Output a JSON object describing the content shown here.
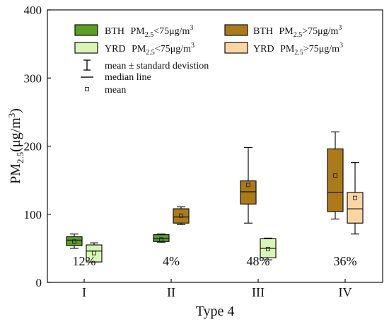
{
  "chart_data": {
    "type": "box",
    "xlabel": "Type 4",
    "ylabel": {
      "prefix": "PM",
      "sub": "2.5",
      "suffix": "(μg/m",
      "sup": "3",
      "end": ")"
    },
    "ylim": [
      0,
      400
    ],
    "yticks": [
      0,
      100,
      200,
      300,
      400
    ],
    "categories": [
      "I",
      "II",
      "III",
      "IV"
    ],
    "percentages": [
      "12%",
      "4%",
      "48%",
      "36%"
    ],
    "legend": {
      "series": [
        {
          "key": "bth_lt",
          "region": "BTH",
          "sub": "2.5",
          "rest": "<75μg/m",
          "sup": "3"
        },
        {
          "key": "bth_gt",
          "region": "BTH",
          "sub": "2.5",
          "rest": ">75μg/m",
          "sup": "3"
        },
        {
          "key": "yrd_lt",
          "region": "YRD",
          "sub": "2.5",
          "rest": "<75μg/m",
          "sup": "3"
        },
        {
          "key": "yrd_gt",
          "region": "YRD",
          "sub": "2.5",
          "rest": ">75μg/m",
          "sup": "3"
        }
      ],
      "symbols": [
        {
          "symbol": "errorbar",
          "label": "mean ± standard devistion"
        },
        {
          "symbol": "median",
          "label": "median line"
        },
        {
          "symbol": "mean",
          "label": "mean"
        }
      ]
    },
    "series_colors": {
      "bth_lt": "#5a9e23",
      "yrd_lt": "#d9f5b5",
      "bth_gt": "#ad7a1a",
      "yrd_gt": "#fbd6a3"
    },
    "boxes": [
      {
        "category": "I",
        "series": "bth_lt",
        "whisker_low": 50,
        "q1": 54,
        "median": 62,
        "q3": 67,
        "whisker_high": 71,
        "mean": 60
      },
      {
        "category": "I",
        "series": "yrd_lt",
        "whisker_low": 30,
        "q1": 30,
        "median": 46,
        "q3": 55,
        "whisker_high": 58,
        "mean": 43
      },
      {
        "category": "II",
        "series": "bth_lt",
        "whisker_low": 59,
        "q1": 60,
        "median": 64,
        "q3": 70,
        "whisker_high": 71,
        "mean": 63
      },
      {
        "category": "II",
        "series": "bth_gt",
        "whisker_low": 85,
        "q1": 87,
        "median": 96,
        "q3": 108,
        "whisker_high": 111,
        "mean": 98
      },
      {
        "category": "III",
        "series": "bth_gt",
        "whisker_low": 87,
        "q1": 115,
        "median": 133,
        "q3": 149,
        "whisker_high": 198,
        "mean": 143
      },
      {
        "category": "III",
        "series": "yrd_lt",
        "whisker_low": 33,
        "q1": 36,
        "median": 50,
        "q3": 64,
        "whisker_high": 65,
        "mean": 49
      },
      {
        "category": "IV",
        "series": "bth_gt",
        "whisker_low": 93,
        "q1": 104,
        "median": 132,
        "q3": 196,
        "whisker_high": 221,
        "mean": 157
      },
      {
        "category": "IV",
        "series": "yrd_gt",
        "whisker_low": 71,
        "q1": 87,
        "median": 108,
        "q3": 132,
        "whisker_high": 176,
        "mean": 124
      }
    ]
  }
}
